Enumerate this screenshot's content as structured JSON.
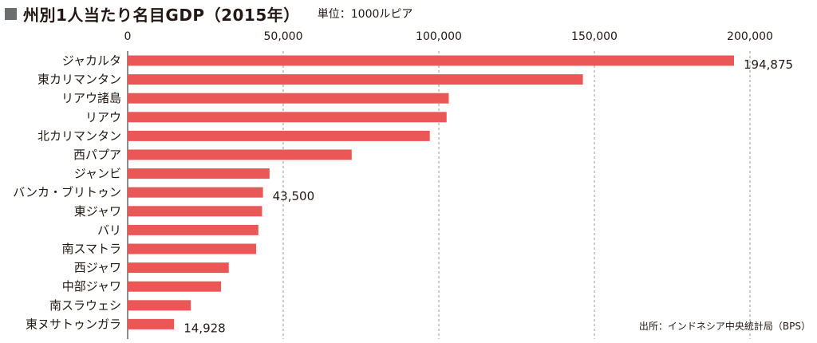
{
  "header": {
    "title": "州別1人当たり名目GDP（2015年）",
    "unit": "単位：1000ルピア"
  },
  "source": "出所：インドネシア中央統計局（BPS）",
  "colors": {
    "bar": "#eb5757",
    "grid": "#9a9a9a",
    "text": "#231815",
    "title_square": "#6d6e71"
  },
  "chart_data": {
    "type": "bar",
    "orientation": "horizontal",
    "title": "州別1人当たり名目GDP（2015年）",
    "unit": "単位：1000ルピア",
    "categories": [
      "ジャカルタ",
      "東カリマンタン",
      "リアウ諸島",
      "リアウ",
      "北カリマンタン",
      "西パプア",
      "ジャンビ",
      "バンカ・ブリトゥン",
      "東ジャワ",
      "バリ",
      "南スマトラ",
      "西ジャワ",
      "中部ジャワ",
      "南スラウェシ",
      "東ヌサトゥンガラ"
    ],
    "values": [
      194875,
      146300,
      103200,
      102500,
      97100,
      72000,
      45600,
      43500,
      43200,
      42000,
      41300,
      32500,
      30000,
      20300,
      14928
    ],
    "data_labels": {
      "0": "194,875",
      "7": "43,500",
      "14": "14,928"
    },
    "xlim": [
      0,
      215000
    ],
    "ticks": [
      0,
      50000,
      100000,
      150000,
      200000
    ],
    "tick_labels": [
      "0",
      "50,000",
      "100,000",
      "150,000",
      "200,000"
    ],
    "grid": true,
    "xlabel": "",
    "ylabel": ""
  }
}
